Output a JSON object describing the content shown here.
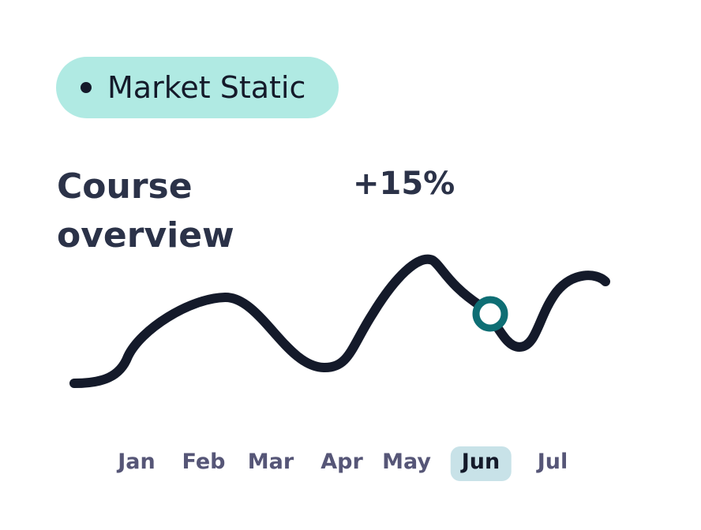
{
  "badge": {
    "label": "Market Static",
    "icon": "dot-icon"
  },
  "title": "Course overview",
  "change": "+15%",
  "colors": {
    "line": "#141a2a",
    "marker": "#0e6e74",
    "badge_bg": "#b0eae3",
    "active_month_bg": "#c8e2e8"
  },
  "chart_data": {
    "type": "line",
    "categories": [
      "Jan",
      "Feb",
      "Mar",
      "Apr",
      "May",
      "Jun",
      "Jul"
    ],
    "highlighted": "Jun",
    "annotation": "+15%",
    "grid": false
  }
}
